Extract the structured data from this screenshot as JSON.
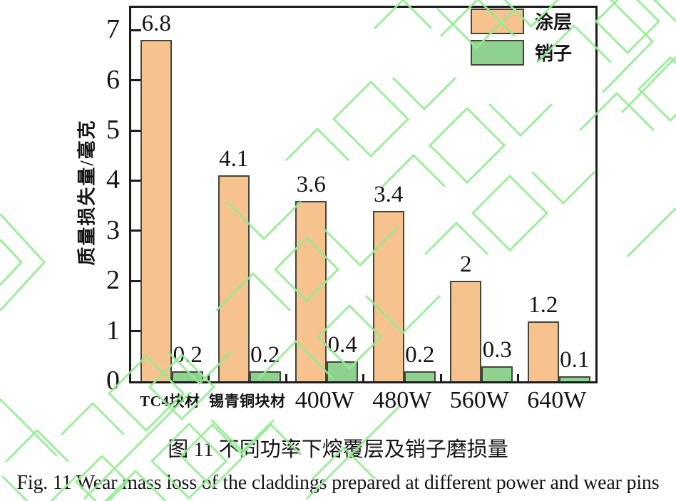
{
  "figure": {
    "caption_zh": "图 11 不同功率下熔覆层及销子磨损量",
    "caption_en": "Fig. 11 Wear mass loss of the claddings prepared at different power and wear pins"
  },
  "chart_data": {
    "type": "bar",
    "categories": [
      "TC4块材",
      "锡青铜块材",
      "400W",
      "480W",
      "560W",
      "640W"
    ],
    "series": [
      {
        "name": "涂层",
        "color": "#f6c28e",
        "values": [
          6.8,
          4.1,
          3.6,
          3.4,
          2,
          1.2
        ]
      },
      {
        "name": "销子",
        "color": "#8fd290",
        "values": [
          0.2,
          0.2,
          0.4,
          0.2,
          0.3,
          0.1
        ]
      }
    ],
    "bar_value_labels": {
      "涂层": [
        "6.8",
        "4.1",
        "3.6",
        "3.4",
        "2",
        "1.2"
      ],
      "销子": [
        "0.2",
        "0.2",
        "0.4",
        "0.2",
        "0.3",
        "0.1"
      ]
    },
    "title": "",
    "xlabel": "",
    "ylabel": "质量损失量/毫克",
    "ylim": [
      0,
      7.5
    ],
    "yticks": [
      0,
      1,
      2,
      3,
      4,
      5,
      6,
      7
    ],
    "grid": false,
    "legend_position": "top-right-inside"
  },
  "colors": {
    "coating_fill": "#f6c28e",
    "pin_fill": "#8fd290",
    "bar_border": "#45453c",
    "axis": "#1c1c1c",
    "text": "#151515",
    "watermark": "#93eb93",
    "background": "#ffffff"
  }
}
